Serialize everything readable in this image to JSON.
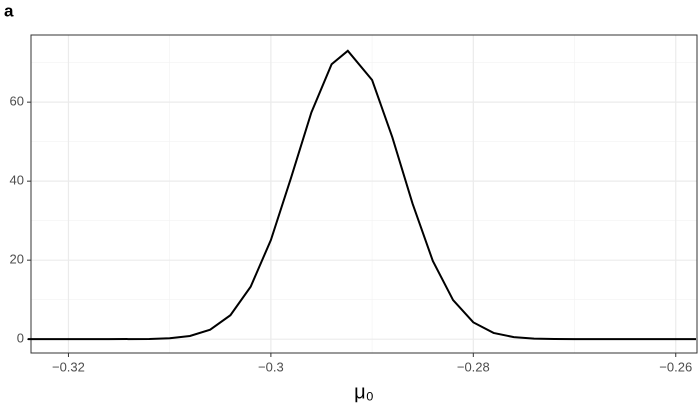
{
  "chart_data": {
    "type": "line",
    "tag": "a",
    "xlabel": "μ₀",
    "x": [
      -0.324,
      -0.32,
      -0.316,
      -0.312,
      -0.31,
      -0.308,
      -0.306,
      -0.304,
      -0.302,
      -0.3,
      -0.298,
      -0.296,
      -0.294,
      -0.2924,
      -0.29,
      -0.288,
      -0.286,
      -0.284,
      -0.282,
      -0.28,
      -0.278,
      -0.276,
      -0.274,
      -0.272,
      -0.27,
      -0.266,
      -0.262,
      -0.258
    ],
    "series": [
      {
        "color": "#000000",
        "values": [
          0,
          0,
          0,
          0.06,
          0.24,
          0.81,
          2.4,
          6.06,
          13.27,
          25.1,
          40.9,
          57.4,
          69.6,
          73,
          65.6,
          51.1,
          34.3,
          19.8,
          9.9,
          4.26,
          1.58,
          0.51,
          0.14,
          0.03,
          0,
          0,
          0,
          0
        ]
      }
    ],
    "xlim": [
      -0.3237,
      -0.2579
    ],
    "xticks": [
      -0.32,
      -0.3,
      -0.28,
      -0.26
    ],
    "ylim": [
      -3.5,
      77
    ],
    "yticks": [
      0,
      20,
      40,
      60
    ],
    "grid": true,
    "minor_grid": true
  }
}
